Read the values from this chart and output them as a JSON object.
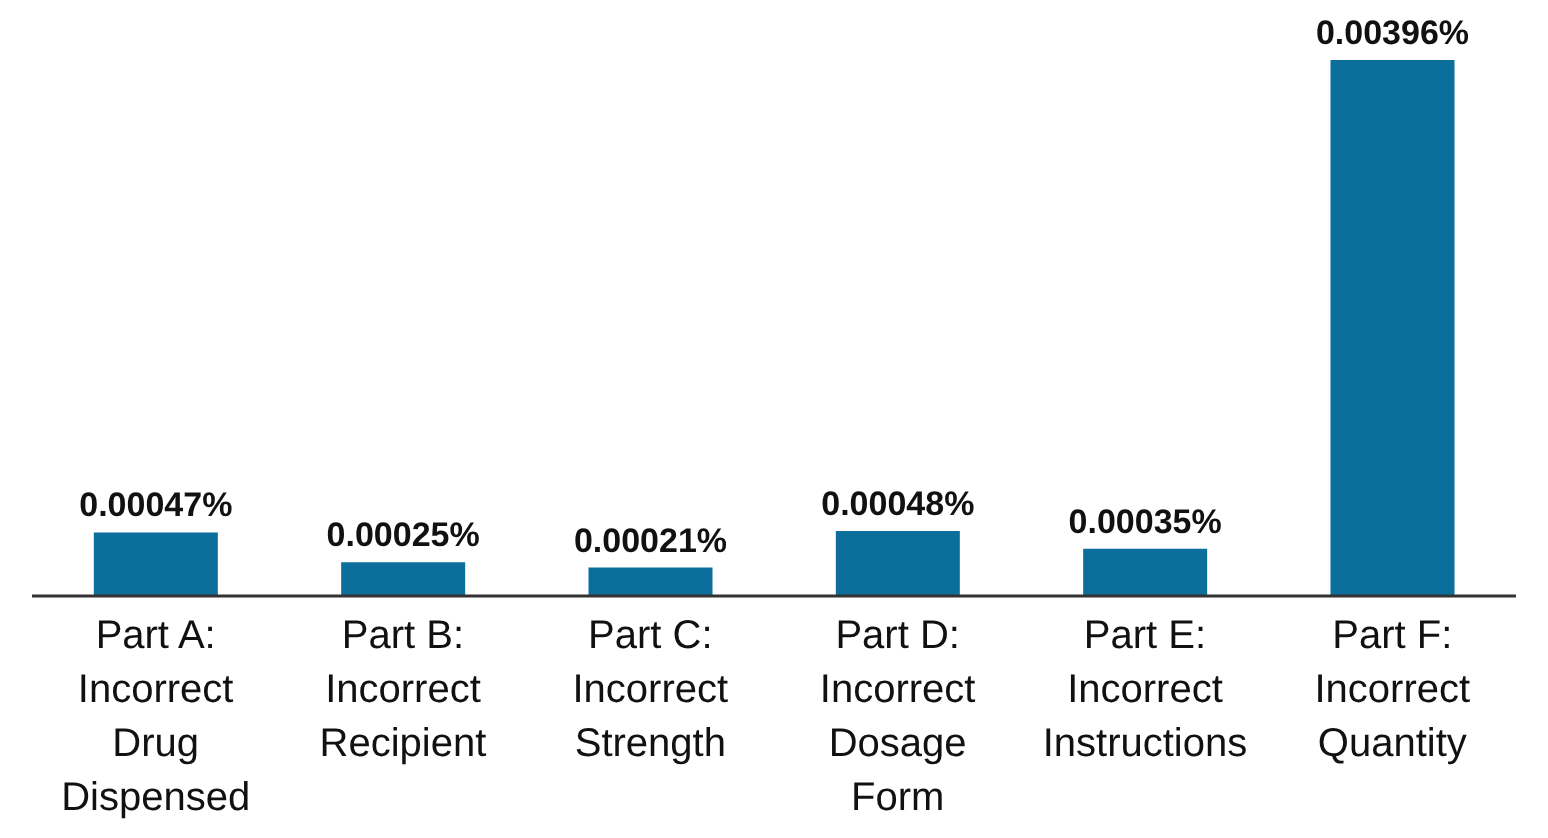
{
  "chart_data": {
    "type": "bar",
    "categories": [
      "Part A: Incorrect Drug Dispensed",
      "Part B: Incorrect Recipient",
      "Part C: Incorrect Strength",
      "Part D: Incorrect Dosage Form",
      "Part E: Incorrect Instructions",
      "Part F: Incorrect Quantity"
    ],
    "values": [
      0.00047,
      0.00025,
      0.00021,
      0.00048,
      0.00035,
      0.00396
    ],
    "value_labels": [
      "0.00047%",
      "0.00025%",
      "0.00021%",
      "0.00048%",
      "0.00035%",
      "0.00396%"
    ],
    "color": "#0b6e9b",
    "grid": false,
    "legend": false
  }
}
